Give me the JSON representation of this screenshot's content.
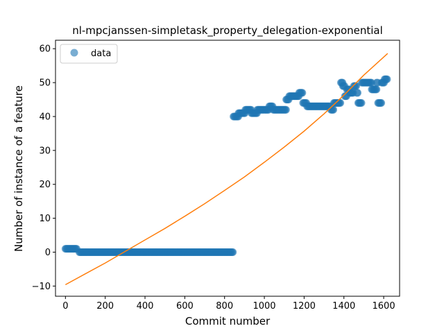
{
  "chart_data": {
    "type": "scatter",
    "title": "nl-mpcjanssen-simpletask_property_delegation-exponential",
    "xlabel": "Commit number",
    "ylabel": "Number of instance of a feature",
    "xlim": [
      -50,
      1680
    ],
    "ylim": [
      -13,
      62.5
    ],
    "xticks": [
      0,
      200,
      400,
      600,
      800,
      1000,
      1200,
      1400,
      1600
    ],
    "yticks": [
      -10,
      0,
      10,
      20,
      30,
      40,
      50,
      60
    ],
    "grid": false,
    "legend": {
      "position": "top-left",
      "entries": [
        "data"
      ]
    },
    "colors": {
      "data": "#1f77b4",
      "fit": "#ff7f0e"
    },
    "series": [
      {
        "name": "data",
        "kind": "scatter",
        "runs": [
          [
            0,
            60,
            1
          ],
          [
            70,
            845,
            0
          ],
          [
            845,
            870,
            40
          ],
          [
            870,
            905,
            41
          ],
          [
            905,
            935,
            42
          ],
          [
            935,
            965,
            41
          ],
          [
            965,
            1025,
            42
          ],
          [
            1025,
            1045,
            43
          ],
          [
            1045,
            1110,
            42
          ],
          [
            1110,
            1125,
            45
          ],
          [
            1125,
            1175,
            46
          ],
          [
            1175,
            1195,
            47
          ],
          [
            1195,
            1215,
            44
          ],
          [
            1215,
            1335,
            43
          ],
          [
            1335,
            1350,
            42
          ],
          [
            1350,
            1385,
            44
          ],
          [
            1385,
            1395,
            50
          ],
          [
            1395,
            1405,
            49
          ],
          [
            1405,
            1415,
            46
          ],
          [
            1415,
            1430,
            48
          ],
          [
            1430,
            1450,
            47
          ],
          [
            1450,
            1465,
            49
          ],
          [
            1465,
            1472,
            47
          ],
          [
            1472,
            1490,
            44
          ],
          [
            1490,
            1540,
            50
          ],
          [
            1540,
            1565,
            48
          ],
          [
            1565,
            1572,
            50
          ],
          [
            1572,
            1590,
            44
          ],
          [
            1590,
            1605,
            50
          ],
          [
            1605,
            1620,
            51
          ]
        ]
      },
      {
        "name": "",
        "kind": "line",
        "x": [
          0,
          100,
          200,
          300,
          400,
          500,
          600,
          700,
          800,
          900,
          1000,
          1100,
          1200,
          1300,
          1400,
          1500,
          1620
        ],
        "y": [
          -9.6,
          -6.4,
          -3.2,
          0.2,
          3.6,
          7.0,
          10.6,
          14.3,
          18.2,
          22.2,
          26.5,
          31.0,
          35.7,
          40.8,
          46.3,
          52.2,
          58.6
        ]
      }
    ]
  }
}
